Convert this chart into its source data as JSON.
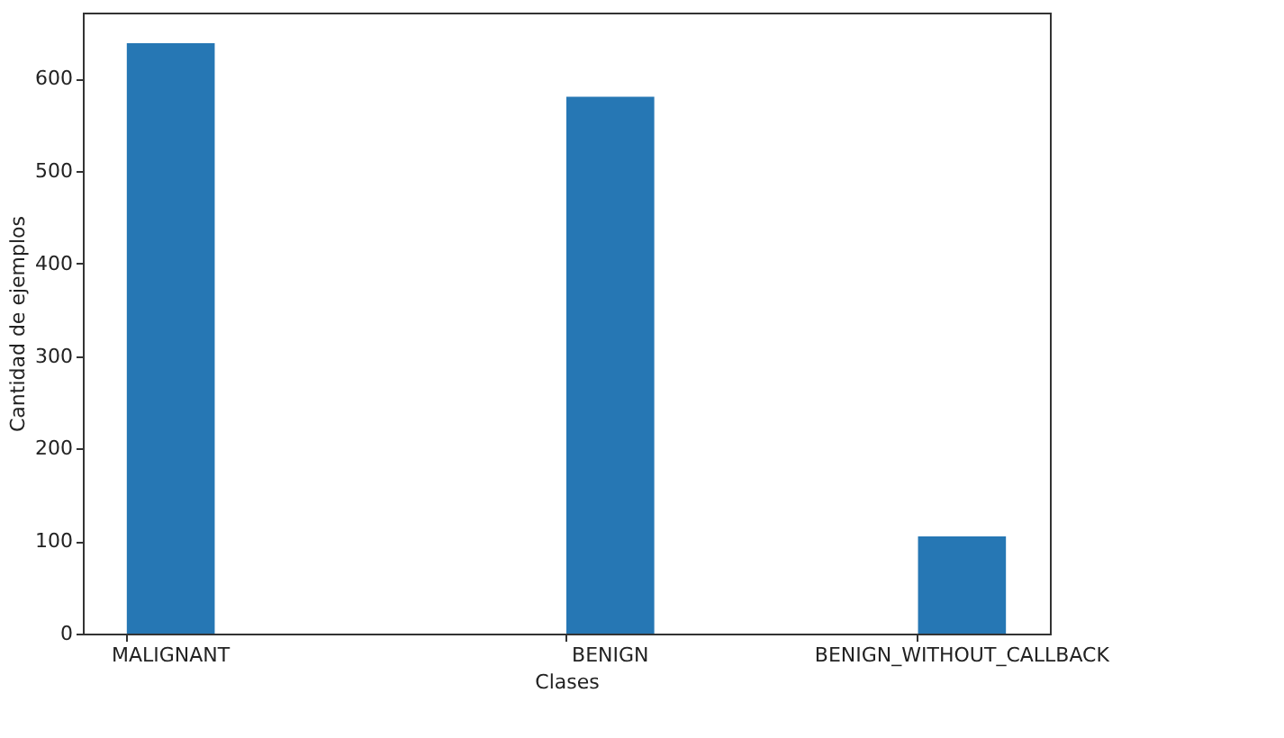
{
  "chart_data": {
    "type": "bar",
    "xlabel": "Clases",
    "ylabel": "Cantidad de ejemplos",
    "categories": [
      "MALIGNANT",
      null,
      null,
      null,
      null,
      "BENIGN",
      null,
      null,
      null,
      "BENIGN_WITHOUT_CALLBACK"
    ],
    "values": [
      638,
      0,
      0,
      0,
      0,
      580,
      0,
      0,
      0,
      105
    ],
    "color": "#2677b4",
    "ylim": [
      0,
      671
    ],
    "yticks": [
      0,
      100,
      200,
      300,
      400,
      500,
      600
    ],
    "grid": false
  }
}
